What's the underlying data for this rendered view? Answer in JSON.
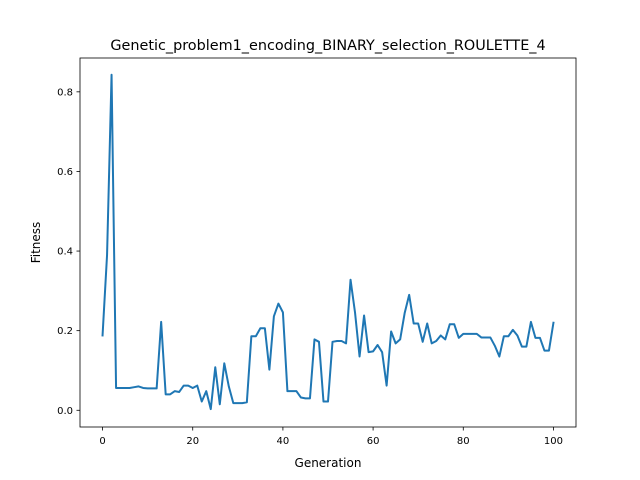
{
  "chart_data": {
    "type": "line",
    "title": "Genetic_problem1_encoding_BINARY_selection_ROULETTE_4",
    "xlabel": "Generation",
    "ylabel": "Fitness",
    "xlim": [
      -5,
      105
    ],
    "ylim": [
      -0.042,
      0.885
    ],
    "xticks": [
      0,
      20,
      40,
      60,
      80,
      100
    ],
    "yticks": [
      0.0,
      0.2,
      0.4,
      0.6,
      0.8
    ],
    "xtick_labels": [
      "0",
      "20",
      "40",
      "60",
      "80",
      "100"
    ],
    "ytick_labels": [
      "0.0",
      "0.2",
      "0.4",
      "0.6",
      "0.8"
    ],
    "grid": false,
    "line_color": "#1f77b4",
    "series": [
      {
        "x": [
          0,
          1,
          2,
          3,
          4,
          5,
          6,
          7,
          8,
          9,
          10,
          11,
          12,
          13,
          14,
          15,
          16,
          17,
          18,
          19,
          20,
          21,
          22,
          23,
          24,
          25,
          26,
          27,
          28,
          29,
          30,
          31,
          32,
          33,
          34,
          35,
          36,
          37,
          38,
          39,
          40,
          41,
          42,
          43,
          44,
          45,
          46,
          47,
          48,
          49,
          50,
          51,
          52,
          53,
          54,
          55,
          56,
          57,
          58,
          59,
          60,
          61,
          62,
          63,
          64,
          65,
          66,
          67,
          68,
          69,
          70,
          71,
          72,
          73,
          74,
          75,
          76,
          77,
          78,
          79,
          80,
          81,
          82,
          83,
          84,
          85,
          86,
          87,
          88,
          89,
          90,
          91,
          92,
          93,
          94,
          95,
          96,
          97,
          98,
          99,
          100
        ],
        "values": [
          0.188,
          0.39,
          0.843,
          0.056,
          0.056,
          0.056,
          0.056,
          0.058,
          0.06,
          0.056,
          0.055,
          0.055,
          0.055,
          0.222,
          0.04,
          0.04,
          0.048,
          0.046,
          0.062,
          0.062,
          0.056,
          0.062,
          0.022,
          0.048,
          0.003,
          0.108,
          0.015,
          0.118,
          0.06,
          0.018,
          0.018,
          0.018,
          0.02,
          0.186,
          0.186,
          0.206,
          0.206,
          0.102,
          0.236,
          0.268,
          0.246,
          0.048,
          0.048,
          0.048,
          0.032,
          0.03,
          0.03,
          0.178,
          0.172,
          0.022,
          0.022,
          0.172,
          0.174,
          0.174,
          0.168,
          0.328,
          0.245,
          0.135,
          0.238,
          0.146,
          0.148,
          0.164,
          0.146,
          0.062,
          0.198,
          0.168,
          0.178,
          0.244,
          0.29,
          0.218,
          0.218,
          0.172,
          0.218,
          0.168,
          0.174,
          0.188,
          0.178,
          0.216,
          0.216,
          0.182,
          0.192,
          0.192,
          0.192,
          0.192,
          0.183,
          0.183,
          0.183,
          0.162,
          0.135,
          0.186,
          0.186,
          0.202,
          0.188,
          0.16,
          0.16,
          0.222,
          0.182,
          0.182,
          0.15,
          0.15,
          0.22
        ]
      }
    ]
  }
}
